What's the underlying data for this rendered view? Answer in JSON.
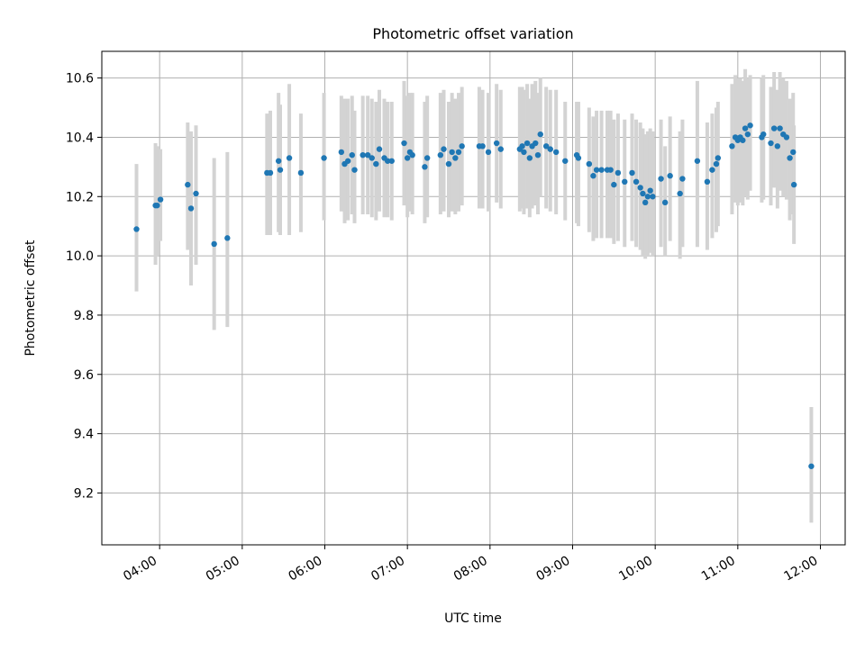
{
  "chart_data": {
    "type": "scatter",
    "title": "Photometric offset variation",
    "xlabel": "UTC time",
    "ylabel": "Photometric offset",
    "x_unit": "hours UTC",
    "xlim": [
      3.3,
      12.3
    ],
    "ylim": [
      9.025,
      10.69
    ],
    "xticks": [
      4,
      5,
      6,
      7,
      8,
      9,
      10,
      11,
      12
    ],
    "xtick_labels": [
      "04:00",
      "05:00",
      "06:00",
      "07:00",
      "08:00",
      "09:00",
      "10:00",
      "11:00",
      "12:00"
    ],
    "yticks": [
      9.2,
      9.4,
      9.6,
      9.8,
      10.0,
      10.2,
      10.4,
      10.6
    ],
    "ytick_labels": [
      "9.2",
      "9.4",
      "9.6",
      "9.8",
      "10.0",
      "10.2",
      "10.4",
      "10.6"
    ],
    "grid": true,
    "legend": "none",
    "colors": {
      "point": "#1f77b4",
      "errorbar": "#d3d3d3",
      "grid": "#b0b0b0"
    },
    "series": [
      {
        "x": [
          3.72,
          3.95,
          3.97,
          4.01,
          4.34,
          4.38,
          4.44,
          4.66,
          4.82,
          5.3,
          5.34,
          5.44,
          5.46,
          5.57,
          5.71,
          5.99,
          6.2,
          6.24,
          6.28,
          6.33,
          6.36,
          6.46,
          6.52,
          6.57,
          6.62,
          6.66,
          6.72,
          6.76,
          6.81,
          6.96,
          7.0,
          7.03,
          7.06,
          7.21,
          7.24,
          7.4,
          7.44,
          7.5,
          7.54,
          7.58,
          7.62,
          7.66,
          7.87,
          7.91,
          7.98,
          8.08,
          8.13,
          8.36,
          8.39,
          8.41,
          8.45,
          8.48,
          8.51,
          8.55,
          8.58,
          8.61,
          8.68,
          8.73,
          8.8,
          8.91,
          9.05,
          9.07,
          9.2,
          9.25,
          9.29,
          9.35,
          9.42,
          9.46,
          9.5,
          9.55,
          9.63,
          9.72,
          9.77,
          9.82,
          9.85,
          9.88,
          9.91,
          9.94,
          9.97,
          10.07,
          10.12,
          10.18,
          10.3,
          10.33,
          10.51,
          10.63,
          10.69,
          10.74,
          10.76,
          10.93,
          10.97,
          11.0,
          11.03,
          11.06,
          11.09,
          11.12,
          11.15,
          11.29,
          11.31,
          11.4,
          11.44,
          11.48,
          11.51,
          11.55,
          11.59,
          11.63,
          11.67,
          11.68,
          11.89
        ],
        "y": [
          10.09,
          10.17,
          10.17,
          10.19,
          10.24,
          10.16,
          10.21,
          10.04,
          10.06,
          10.28,
          10.28,
          10.32,
          10.29,
          10.33,
          10.28,
          10.33,
          10.35,
          10.31,
          10.32,
          10.34,
          10.29,
          10.34,
          10.34,
          10.33,
          10.31,
          10.36,
          10.33,
          10.32,
          10.32,
          10.38,
          10.33,
          10.35,
          10.34,
          10.3,
          10.33,
          10.34,
          10.36,
          10.31,
          10.35,
          10.33,
          10.35,
          10.37,
          10.37,
          10.37,
          10.35,
          10.38,
          10.36,
          10.36,
          10.37,
          10.35,
          10.38,
          10.33,
          10.37,
          10.38,
          10.34,
          10.41,
          10.37,
          10.36,
          10.35,
          10.32,
          10.34,
          10.33,
          10.31,
          10.27,
          10.29,
          10.29,
          10.29,
          10.29,
          10.24,
          10.28,
          10.25,
          10.28,
          10.25,
          10.23,
          10.21,
          10.18,
          10.2,
          10.22,
          10.2,
          10.26,
          10.18,
          10.27,
          10.21,
          10.26,
          10.32,
          10.25,
          10.29,
          10.31,
          10.33,
          10.37,
          10.4,
          10.39,
          10.4,
          10.39,
          10.43,
          10.41,
          10.44,
          10.4,
          10.41,
          10.38,
          10.43,
          10.37,
          10.43,
          10.41,
          10.4,
          10.33,
          10.35,
          10.24,
          9.29
        ],
        "err_low": [
          9.88,
          9.97,
          10.0,
          10.05,
          10.02,
          9.9,
          9.97,
          9.75,
          9.76,
          10.07,
          10.07,
          10.08,
          10.07,
          10.07,
          10.08,
          10.12,
          10.15,
          10.11,
          10.12,
          10.14,
          10.11,
          10.14,
          10.14,
          10.13,
          10.12,
          10.15,
          10.13,
          10.13,
          10.12,
          10.17,
          10.13,
          10.15,
          10.14,
          10.11,
          10.13,
          10.14,
          10.15,
          10.13,
          10.15,
          10.14,
          10.15,
          10.17,
          10.16,
          10.16,
          10.15,
          10.18,
          10.16,
          10.15,
          10.16,
          10.14,
          10.16,
          10.13,
          10.16,
          10.17,
          10.14,
          10.2,
          10.16,
          10.15,
          10.14,
          10.12,
          10.11,
          10.1,
          10.08,
          10.05,
          10.06,
          10.06,
          10.06,
          10.06,
          10.04,
          10.05,
          10.03,
          10.05,
          10.03,
          10.02,
          10.0,
          9.99,
          10.0,
          10.01,
          10.0,
          10.03,
          10.0,
          10.05,
          9.99,
          10.03,
          10.03,
          10.02,
          10.06,
          10.08,
          10.1,
          10.14,
          10.18,
          10.17,
          10.18,
          10.17,
          10.2,
          10.19,
          10.22,
          10.18,
          10.19,
          10.17,
          10.23,
          10.16,
          10.22,
          10.2,
          10.19,
          10.12,
          10.14,
          10.04,
          9.1
        ],
        "err_high": [
          10.31,
          10.38,
          10.37,
          10.36,
          10.45,
          10.42,
          10.44,
          10.33,
          10.35,
          10.48,
          10.49,
          10.55,
          10.51,
          10.58,
          10.48,
          10.55,
          10.54,
          10.53,
          10.53,
          10.54,
          10.49,
          10.54,
          10.54,
          10.53,
          10.52,
          10.56,
          10.53,
          10.52,
          10.52,
          10.59,
          10.54,
          10.55,
          10.55,
          10.52,
          10.54,
          10.55,
          10.56,
          10.52,
          10.55,
          10.53,
          10.55,
          10.57,
          10.57,
          10.56,
          10.55,
          10.58,
          10.56,
          10.57,
          10.57,
          10.56,
          10.58,
          10.53,
          10.58,
          10.59,
          10.55,
          10.6,
          10.57,
          10.56,
          10.56,
          10.52,
          10.52,
          10.52,
          10.5,
          10.47,
          10.49,
          10.49,
          10.49,
          10.49,
          10.46,
          10.48,
          10.46,
          10.48,
          10.46,
          10.45,
          10.43,
          10.41,
          10.42,
          10.43,
          10.42,
          10.46,
          10.37,
          10.47,
          10.42,
          10.46,
          10.59,
          10.45,
          10.48,
          10.5,
          10.52,
          10.58,
          10.61,
          10.6,
          10.6,
          10.59,
          10.63,
          10.6,
          10.61,
          10.6,
          10.61,
          10.57,
          10.62,
          10.56,
          10.62,
          10.6,
          10.59,
          10.53,
          10.55,
          10.44,
          9.49
        ]
      }
    ]
  }
}
